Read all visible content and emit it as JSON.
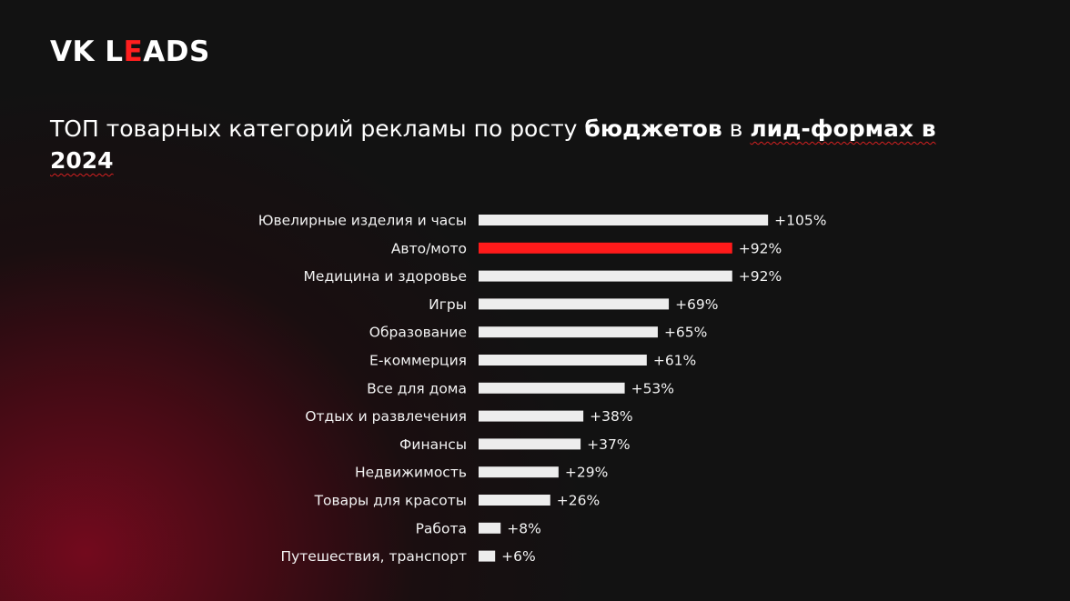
{
  "logo": {
    "part1": "VK L",
    "accent": "E",
    "part2": "ADS"
  },
  "title": {
    "part1": "ТОП товарных категорий рекламы по росту ",
    "bold1": "бюджетов",
    "part2": " в ",
    "bold2": "лид-формах в 2024"
  },
  "colors": {
    "bar": "#ededed",
    "highlight": "#ff1a1a",
    "text": "#f2f2f2"
  },
  "chart_data": {
    "type": "bar",
    "orientation": "horizontal",
    "categories": [
      "Ювелирные изделия и часы",
      "Авто/мото",
      "Медицина и здоровье",
      "Игры",
      "Образование",
      "Е-коммерция",
      "Все для дома",
      "Отдых и развлечения",
      "Финансы",
      "Недвижимость",
      "Товары для красоты",
      "Работа",
      "Путешествия, транспорт"
    ],
    "values": [
      105,
      92,
      92,
      69,
      65,
      61,
      53,
      38,
      37,
      29,
      26,
      8,
      6
    ],
    "value_labels": [
      "+105%",
      "+92%",
      "+92%",
      "+69%",
      "+65%",
      "+61%",
      "+53%",
      "+38%",
      "+37%",
      "+29%",
      "+26%",
      "+8%",
      "+6%"
    ],
    "highlight_category": "Авто/мото",
    "grid": false
  }
}
